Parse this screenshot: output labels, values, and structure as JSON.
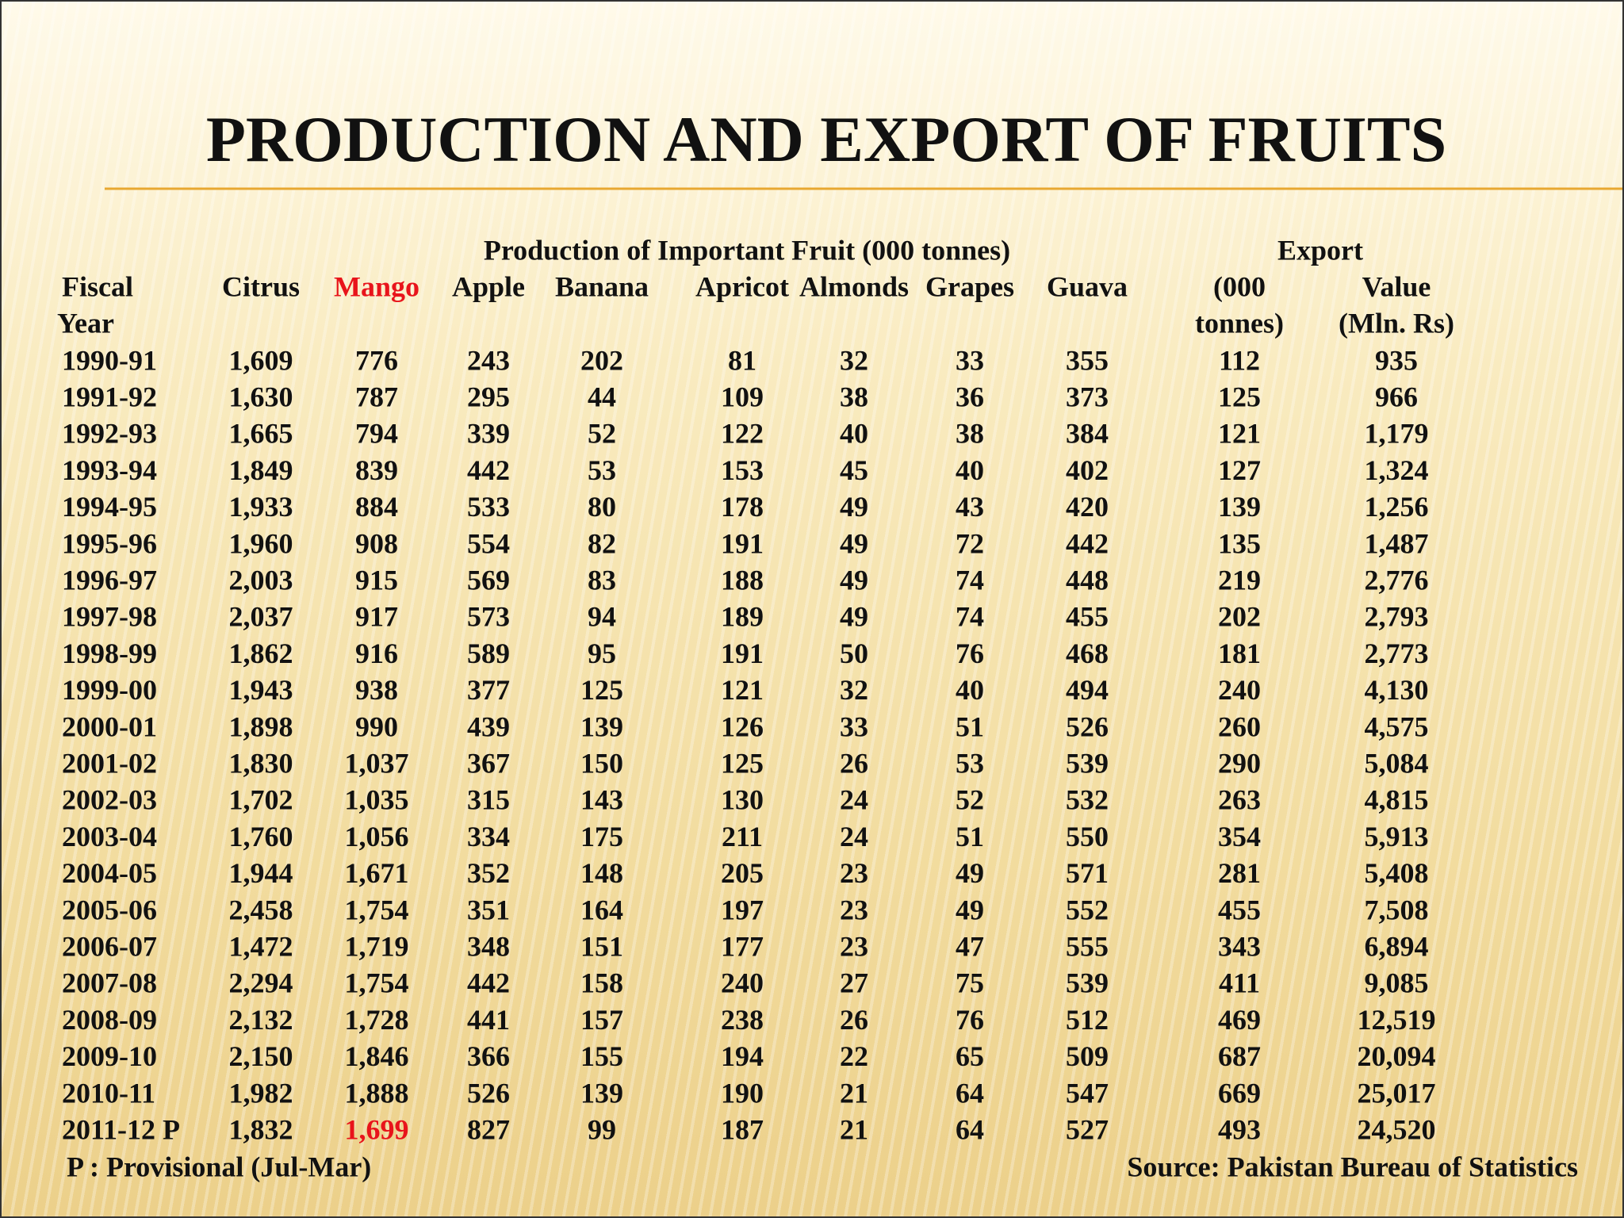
{
  "title": "PRODUCTION AND EXPORT OF FRUITS",
  "table": {
    "group_headers": [
      "Production of Important Fruit (000 tonnes)",
      "Export"
    ],
    "headers": [
      [
        "Fiscal",
        "Year"
      ],
      [
        "Citrus"
      ],
      [
        "Mango"
      ],
      [
        "Apple"
      ],
      [
        "Banana"
      ],
      [
        "Apricot"
      ],
      [
        "Almonds"
      ],
      [
        "Grapes"
      ],
      [
        "Guava"
      ],
      [
        "(000",
        "tonnes)"
      ],
      [
        "Value",
        "(Mln. Rs)"
      ]
    ],
    "rows": [
      [
        "1990-91",
        "1,609",
        "776",
        "243",
        "202",
        "81",
        "32",
        "33",
        "355",
        "112",
        "935"
      ],
      [
        "1991-92",
        "1,630",
        "787",
        "295",
        "44",
        "109",
        "38",
        "36",
        "373",
        "125",
        "966"
      ],
      [
        "1992-93",
        "1,665",
        "794",
        "339",
        "52",
        "122",
        "40",
        "38",
        "384",
        "121",
        "1,179"
      ],
      [
        "1993-94",
        "1,849",
        "839",
        "442",
        "53",
        "153",
        "45",
        "40",
        "402",
        "127",
        "1,324"
      ],
      [
        "1994-95",
        "1,933",
        "884",
        "533",
        "80",
        "178",
        "49",
        "43",
        "420",
        "139",
        "1,256"
      ],
      [
        "1995-96",
        "1,960",
        "908",
        "554",
        "82",
        "191",
        "49",
        "72",
        "442",
        "135",
        "1,487"
      ],
      [
        "1996-97",
        "2,003",
        "915",
        "569",
        "83",
        "188",
        "49",
        "74",
        "448",
        "219",
        "2,776"
      ],
      [
        "1997-98",
        "2,037",
        "917",
        "573",
        "94",
        "189",
        "49",
        "74",
        "455",
        "202",
        "2,793"
      ],
      [
        "1998-99",
        "1,862",
        "916",
        "589",
        "95",
        "191",
        "50",
        "76",
        "468",
        "181",
        "2,773"
      ],
      [
        "1999-00",
        "1,943",
        "938",
        "377",
        "125",
        "121",
        "32",
        "40",
        "494",
        "240",
        "4,130"
      ],
      [
        "2000-01",
        "1,898",
        "990",
        "439",
        "139",
        "126",
        "33",
        "51",
        "526",
        "260",
        "4,575"
      ],
      [
        "2001-02",
        "1,830",
        "1,037",
        "367",
        "150",
        "125",
        "26",
        "53",
        "539",
        "290",
        "5,084"
      ],
      [
        "2002-03",
        "1,702",
        "1,035",
        "315",
        "143",
        "130",
        "24",
        "52",
        "532",
        "263",
        "4,815"
      ],
      [
        "2003-04",
        "1,760",
        "1,056",
        "334",
        "175",
        "211",
        "24",
        "51",
        "550",
        "354",
        "5,913"
      ],
      [
        "2004-05",
        "1,944",
        "1,671",
        "352",
        "148",
        "205",
        "23",
        "49",
        "571",
        "281",
        "5,408"
      ],
      [
        "2005-06",
        "2,458",
        "1,754",
        "351",
        "164",
        "197",
        "23",
        "49",
        "552",
        "455",
        "7,508"
      ],
      [
        "2006-07",
        "1,472",
        "1,719",
        "348",
        "151",
        "177",
        "23",
        "47",
        "555",
        "343",
        "6,894"
      ],
      [
        "2007-08",
        "2,294",
        "1,754",
        "442",
        "158",
        "240",
        "27",
        "75",
        "539",
        "411",
        "9,085"
      ],
      [
        "2008-09",
        "2,132",
        "1,728",
        "441",
        "157",
        "238",
        "26",
        "76",
        "512",
        "469",
        "12,519"
      ],
      [
        "2009-10",
        "2,150",
        "1,846",
        "366",
        "155",
        "194",
        "22",
        "65",
        "509",
        "687",
        "20,094"
      ],
      [
        "2010-11",
        "1,982",
        "1,888",
        "526",
        "139",
        "190",
        "21",
        "64",
        "547",
        "669",
        "25,017"
      ],
      [
        "2011-12 P",
        "1,832",
        "1,699",
        "827",
        "99",
        "187",
        "21",
        "64",
        "527",
        "493",
        "24,520"
      ]
    ]
  },
  "footnote": "P : Provisional (Jul-Mar)",
  "source": "Source: Pakistan Bureau of Statistics"
}
